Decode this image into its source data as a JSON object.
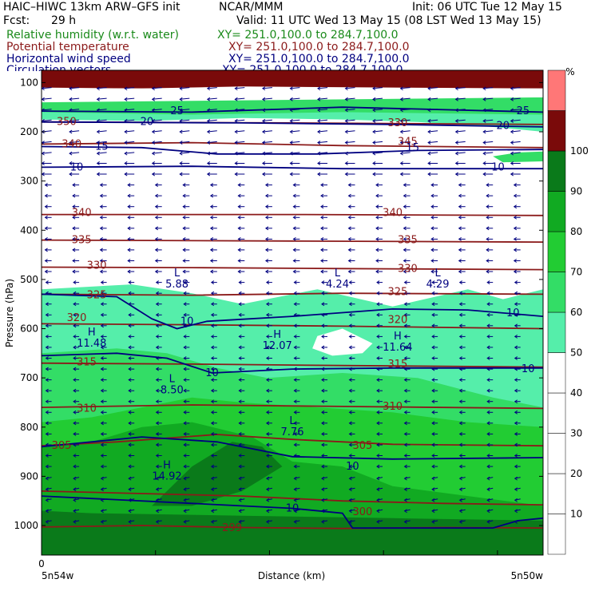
{
  "header": {
    "model": "HAIC–HIWC 13km ARW–GFS init",
    "center": "NCAR/MMM",
    "init": "Init: 06 UTC Tue 12 May 15",
    "fcst_label": "Fcst:",
    "fcst_value": "29 h",
    "valid": "Valid: 11 UTC Wed 13 May 15 (08 LST Wed 13 May 15)",
    "fields": [
      {
        "name": "Relative humidity (w.r.t. water)",
        "xy": "XY= 251.0,100.0 to 284.7,100.0",
        "color": "#1a8a1a"
      },
      {
        "name": "Potential temperature",
        "xy": "XY= 251.0,100.0 to 284.7,100.0",
        "color": "#8b1a1a"
      },
      {
        "name": "Horizontal wind speed",
        "xy": "XY= 251.0,100.0 to 284.7,100.0",
        "color": "#000080"
      },
      {
        "name": "Circulation vectors",
        "xy": "XY= 251.0,100.0 to 284.7,100.0",
        "color": "#000080"
      }
    ]
  },
  "chart_data": {
    "type": "heatmap",
    "ylabel": "Pressure (hPa)",
    "xlabel": "Distance (km)",
    "x_start_tick": "0",
    "x_left_label": "5n54w",
    "x_right_label": "5n50w",
    "pressure_ticks": [
      100,
      200,
      300,
      400,
      500,
      600,
      700,
      800,
      900,
      1000
    ],
    "ylim": [
      1060,
      75
    ],
    "colorbar": {
      "unit": "%",
      "ticks": [
        10,
        20,
        30,
        40,
        50,
        60,
        70,
        80,
        90,
        100
      ],
      "shaded_levels": [
        {
          "from": 50,
          "to": 60,
          "color": "#55eeaa"
        },
        {
          "from": 60,
          "to": 70,
          "color": "#33dd66"
        },
        {
          "from": 70,
          "to": 80,
          "color": "#22cc33"
        },
        {
          "from": 80,
          "to": 90,
          "color": "#11aa22"
        },
        {
          "from": 90,
          "to": 100,
          "color": "#0a7a1a"
        },
        {
          "from": 100,
          "to": 110,
          "color": "#7a0a0a"
        },
        {
          "from": 110,
          "to": 120,
          "color": "#ff7777"
        }
      ]
    },
    "theta_labels": [
      {
        "text": "340",
        "p": 225,
        "x": 0.06
      },
      {
        "text": "345",
        "p": 220,
        "x": 0.73
      },
      {
        "text": "340",
        "p": 365,
        "x": 0.08
      },
      {
        "text": "340",
        "p": 365,
        "x": 0.7
      },
      {
        "text": "335",
        "p": 420,
        "x": 0.08
      },
      {
        "text": "335",
        "p": 420,
        "x": 0.73
      },
      {
        "text": "330",
        "p": 472,
        "x": 0.11
      },
      {
        "text": "330",
        "p": 478,
        "x": 0.73
      },
      {
        "text": "325",
        "p": 532,
        "x": 0.11
      },
      {
        "text": "325",
        "p": 525,
        "x": 0.71
      },
      {
        "text": "320",
        "p": 578,
        "x": 0.07
      },
      {
        "text": "320",
        "p": 582,
        "x": 0.71
      },
      {
        "text": "315",
        "p": 668,
        "x": 0.09
      },
      {
        "text": "315",
        "p": 672,
        "x": 0.71
      },
      {
        "text": "310",
        "p": 762,
        "x": 0.09
      },
      {
        "text": "310",
        "p": 758,
        "x": 0.7
      },
      {
        "text": "305",
        "p": 838,
        "x": 0.04
      },
      {
        "text": "305",
        "p": 838,
        "x": 0.64
      },
      {
        "text": "300",
        "p": 972,
        "x": 0.64
      },
      {
        "text": "299",
        "p": 1005,
        "x": 0.38
      },
      {
        "text": "350",
        "p": 180,
        "x": 0.05
      },
      {
        "text": "330",
        "p": 182,
        "x": 0.71
      }
    ],
    "wind_labels": [
      {
        "text": "10",
        "p": 272,
        "x": 0.07
      },
      {
        "text": "10",
        "p": 272,
        "x": 0.91
      },
      {
        "text": "15",
        "p": 230,
        "x": 0.12
      },
      {
        "text": "15",
        "p": 232,
        "x": 0.74
      },
      {
        "text": "20",
        "p": 180,
        "x": 0.21
      },
      {
        "text": "20",
        "p": 188,
        "x": 0.92
      },
      {
        "text": "25",
        "p": 158,
        "x": 0.27
      },
      {
        "text": "25",
        "p": 158,
        "x": 0.96
      },
      {
        "text": "10",
        "p": 585,
        "x": 0.29
      },
      {
        "text": "10",
        "p": 568,
        "x": 0.94
      },
      {
        "text": "10",
        "p": 690,
        "x": 0.34
      },
      {
        "text": "10",
        "p": 682,
        "x": 0.97
      },
      {
        "text": "10",
        "p": 880,
        "x": 0.62
      },
      {
        "text": "10",
        "p": 965,
        "x": 0.5
      }
    ],
    "extrema": [
      {
        "type": "L",
        "value": "5.88",
        "p": 510,
        "x": 0.27
      },
      {
        "type": "L",
        "value": "4.24",
        "p": 510,
        "x": 0.59
      },
      {
        "type": "L",
        "value": "4.29",
        "p": 510,
        "x": 0.79
      },
      {
        "type": "H",
        "value": "11.48",
        "p": 630,
        "x": 0.1
      },
      {
        "type": "H",
        "value": "12.07",
        "p": 635,
        "x": 0.47
      },
      {
        "type": "H",
        "value": "11.64",
        "p": 638,
        "x": 0.71
      },
      {
        "type": "L",
        "value": "8.50",
        "p": 725,
        "x": 0.26
      },
      {
        "type": "L",
        "value": "7.76",
        "p": 810,
        "x": 0.5
      },
      {
        "type": "H",
        "value": "14.92",
        "p": 900,
        "x": 0.25
      }
    ]
  }
}
